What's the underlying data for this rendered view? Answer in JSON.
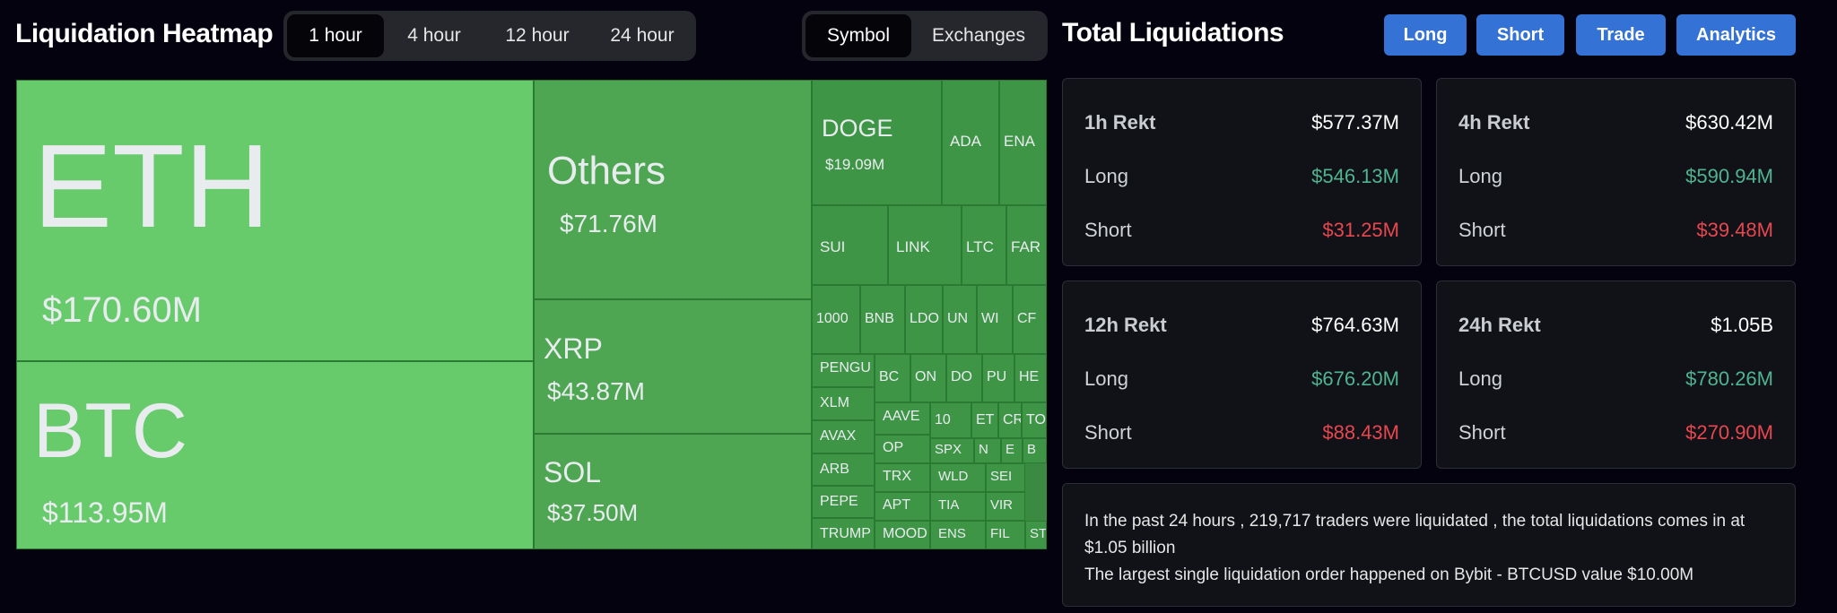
{
  "heatmap": {
    "title": "Liquidation Heatmap",
    "time_tabs": [
      "1 hour",
      "4 hour",
      "12 hour",
      "24 hour"
    ],
    "active_time_tab": "1 hour",
    "view_tabs": [
      "Symbol",
      "Exchanges"
    ],
    "active_view_tab": "Symbol",
    "colors": {
      "tile_bright": "#67cb6c",
      "tile_mid": "#4ea652",
      "tile_dark": "#3f9546",
      "border": "#2b7a34",
      "text": "#e8ecef"
    },
    "tiles": [
      {
        "symbol": "ETH",
        "value": "$170.60M"
      },
      {
        "symbol": "BTC",
        "value": "$113.95M"
      },
      {
        "symbol": "Others",
        "value": "$71.76M"
      },
      {
        "symbol": "XRP",
        "value": "$43.87M"
      },
      {
        "symbol": "SOL",
        "value": "$37.50M"
      },
      {
        "symbol": "DOGE",
        "value": "$19.09M"
      },
      {
        "symbol": "ADA"
      },
      {
        "symbol": "ENA"
      },
      {
        "symbol": "SUI"
      },
      {
        "symbol": "LINK"
      },
      {
        "symbol": "LTC"
      },
      {
        "symbol": "FAR"
      },
      {
        "symbol": "1000"
      },
      {
        "symbol": "BNB"
      },
      {
        "symbol": "LDO"
      },
      {
        "symbol": "UN"
      },
      {
        "symbol": "WI"
      },
      {
        "symbol": "CF"
      },
      {
        "symbol": "PENGU"
      },
      {
        "symbol": "XLM"
      },
      {
        "symbol": "AVAX"
      },
      {
        "symbol": "ARB"
      },
      {
        "symbol": "PEPE"
      },
      {
        "symbol": "TRUMP"
      },
      {
        "symbol": "BC"
      },
      {
        "symbol": "ON"
      },
      {
        "symbol": "DO"
      },
      {
        "symbol": "PU"
      },
      {
        "symbol": "HE"
      },
      {
        "symbol": "AAVE"
      },
      {
        "symbol": "OP"
      },
      {
        "symbol": "TRX"
      },
      {
        "symbol": "APT"
      },
      {
        "symbol": "MOOD"
      },
      {
        "symbol": "10"
      },
      {
        "symbol": "ET"
      },
      {
        "symbol": "CR"
      },
      {
        "symbol": "TO"
      },
      {
        "symbol": "SPX"
      },
      {
        "symbol": "N"
      },
      {
        "symbol": "E"
      },
      {
        "symbol": "B"
      },
      {
        "symbol": "WLD"
      },
      {
        "symbol": "SEI"
      },
      {
        "symbol": "TIA"
      },
      {
        "symbol": "VIR"
      },
      {
        "symbol": "ENS"
      },
      {
        "symbol": "FIL"
      },
      {
        "symbol": "STX"
      }
    ]
  },
  "totals": {
    "title": "Total Liquidations",
    "buttons": [
      "Long",
      "Short",
      "Trade",
      "Analytics"
    ],
    "cards": [
      {
        "label": "1h Rekt",
        "total": "$577.37M",
        "long_label": "Long",
        "long": "$546.13M",
        "short_label": "Short",
        "short": "$31.25M"
      },
      {
        "label": "4h Rekt",
        "total": "$630.42M",
        "long_label": "Long",
        "long": "$590.94M",
        "short_label": "Short",
        "short": "$39.48M"
      },
      {
        "label": "12h Rekt",
        "total": "$764.63M",
        "long_label": "Long",
        "long": "$676.20M",
        "short_label": "Short",
        "short": "$88.43M"
      },
      {
        "label": "24h Rekt",
        "total": "$1.05B",
        "long_label": "Long",
        "long": "$780.26M",
        "short_label": "Short",
        "short": "$270.90M"
      }
    ],
    "summary": {
      "line1": "In the past 24 hours , 219,717 traders were liquidated , the total liquidations comes in at $1.05 billion",
      "line2": "The largest single liquidation order happened on Bybit - BTCUSD value $10.00M"
    },
    "colors": {
      "long": "#4fb48f",
      "short": "#e8474f",
      "button": "#3472d6"
    }
  }
}
